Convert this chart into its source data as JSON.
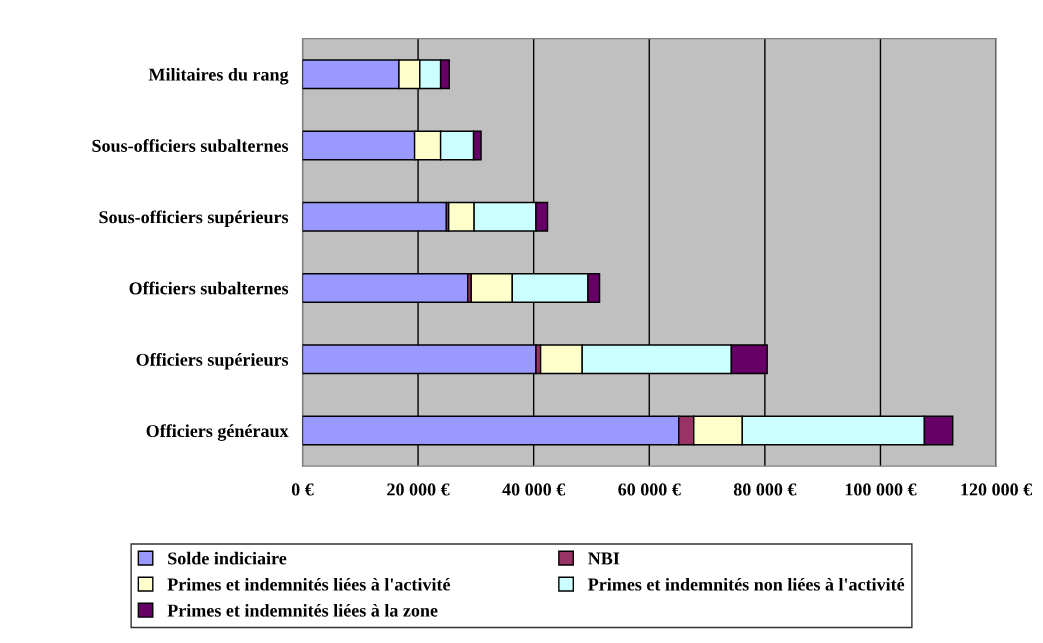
{
  "chart_data": {
    "type": "bar",
    "orientation": "horizontal",
    "stacked": true,
    "categories": [
      "Militaires du rang",
      "Sous-officiers subalternes",
      "Sous-officiers supérieurs",
      "Officiers subalternes",
      "Officiers supérieurs",
      "Officiers généraux"
    ],
    "series": [
      {
        "name": "Solde indiciaire",
        "color": "#9999ff",
        "values": [
          16700,
          19400,
          24900,
          28600,
          40400,
          65100
        ]
      },
      {
        "name": "NBI",
        "color": "#993366",
        "values": [
          null,
          null,
          400,
          600,
          800,
          2600
        ]
      },
      {
        "name": "Primes et indemnités liées à l'activité",
        "color": "#ffffcc",
        "values": [
          3600,
          4500,
          4400,
          7100,
          7200,
          8400
        ]
      },
      {
        "name": "Primes et indemnités non liées à l'activité",
        "color": "#ccffff",
        "values": [
          3600,
          5700,
          10700,
          13100,
          25800,
          31500
        ]
      },
      {
        "name": "Primes et indemnités liées à la zone",
        "color": "#660066",
        "values": [
          1500,
          1300,
          2000,
          2000,
          6200,
          4900
        ]
      }
    ],
    "xlim": [
      0,
      120000
    ],
    "xticks": [
      {
        "value": 0,
        "label": "0 €"
      },
      {
        "value": 20000,
        "label": "20 000 €"
      },
      {
        "value": 40000,
        "label": "40 000 €"
      },
      {
        "value": 60000,
        "label": "60 000 €"
      },
      {
        "value": 80000,
        "label": "80 000 €"
      },
      {
        "value": 100000,
        "label": "100 000 €"
      },
      {
        "value": 120000,
        "label": "120 000 €"
      }
    ],
    "grid": "x",
    "legend": "bottom"
  }
}
